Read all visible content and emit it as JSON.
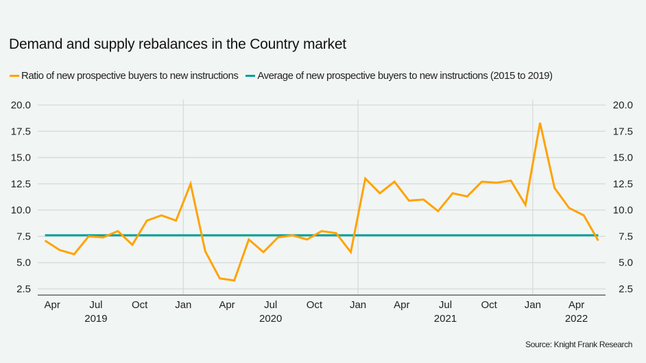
{
  "colors": {
    "background": "#f1f5f4",
    "ratio_series": "#ffa300",
    "average_series": "#00a096",
    "grid": "#d6d9d8",
    "axis": "#888888"
  },
  "chart_data": {
    "type": "line",
    "title": "Demand and supply rebalances in the Country market",
    "source": "Source: Knight Frank Research",
    "xlabel": "",
    "ylabel": "",
    "ylim": [
      2.5,
      20.0
    ],
    "y_ticks": [
      "20.0",
      "17.5",
      "15.0",
      "12.5",
      "10.0",
      "7.5",
      "5.0",
      "2.5"
    ],
    "y_tick_values": [
      20.0,
      17.5,
      15.0,
      12.5,
      10.0,
      7.5,
      5.0,
      2.5
    ],
    "y_axis_both_sides": true,
    "grid": true,
    "legend_position": "top-left",
    "x_start": "2019-03",
    "x_end": "2022-05",
    "x_tick_labels": [
      {
        "month": "Apr",
        "index": 1
      },
      {
        "month": "Jul",
        "index": 4
      },
      {
        "month": "Oct",
        "index": 7
      },
      {
        "month": "Jan",
        "index": 10
      },
      {
        "month": "Apr",
        "index": 13
      },
      {
        "month": "Jul",
        "index": 16
      },
      {
        "month": "Oct",
        "index": 19
      },
      {
        "month": "Jan",
        "index": 22
      },
      {
        "month": "Apr",
        "index": 25
      },
      {
        "month": "Jul",
        "index": 28
      },
      {
        "month": "Oct",
        "index": 31
      },
      {
        "month": "Jan",
        "index": 34
      },
      {
        "month": "Apr",
        "index": 37
      }
    ],
    "year_labels": [
      {
        "year": "2019",
        "index": 4
      },
      {
        "year": "2020",
        "index": 16
      },
      {
        "year": "2021",
        "index": 28
      },
      {
        "year": "2022",
        "index": 37
      }
    ],
    "year_boundaries": [
      10,
      22,
      34
    ],
    "x": [
      "Mar 2019",
      "Apr 2019",
      "May 2019",
      "Jun 2019",
      "Jul 2019",
      "Aug 2019",
      "Sep 2019",
      "Oct 2019",
      "Nov 2019",
      "Dec 2019",
      "Jan 2020",
      "Feb 2020",
      "Mar 2020",
      "Apr 2020",
      "May 2020",
      "Jun 2020",
      "Jul 2020",
      "Aug 2020",
      "Sep 2020",
      "Oct 2020",
      "Nov 2020",
      "Dec 2020",
      "Jan 2021",
      "Feb 2021",
      "Mar 2021",
      "Apr 2021",
      "May 2021",
      "Jun 2021",
      "Jul 2021",
      "Aug 2021",
      "Sep 2021",
      "Oct 2021",
      "Nov 2021",
      "Dec 2021",
      "Jan 2022",
      "Feb 2022",
      "Mar 2022",
      "Apr 2022",
      "May 2022"
    ],
    "series": [
      {
        "name": "Ratio of new prospective buyers to new instructions",
        "color": "#ffa300",
        "values": [
          7.1,
          6.2,
          5.8,
          7.5,
          7.4,
          8.0,
          6.7,
          9.0,
          9.5,
          9.0,
          12.5,
          6.1,
          3.5,
          3.3,
          7.2,
          6.0,
          7.4,
          7.6,
          7.2,
          8.0,
          7.8,
          6.0,
          13.0,
          11.6,
          12.7,
          10.9,
          11.0,
          9.9,
          11.6,
          11.3,
          12.7,
          12.6,
          12.8,
          10.5,
          18.3,
          12.1,
          10.2,
          9.5,
          7.1
        ]
      },
      {
        "name": "Average of new prospective buyers to new instructions (2015 to 2019)",
        "color": "#00a096",
        "values": [
          7.6,
          7.6,
          7.6,
          7.6,
          7.6,
          7.6,
          7.6,
          7.6,
          7.6,
          7.6,
          7.6,
          7.6,
          7.6,
          7.6,
          7.6,
          7.6,
          7.6,
          7.6,
          7.6,
          7.6,
          7.6,
          7.6,
          7.6,
          7.6,
          7.6,
          7.6,
          7.6,
          7.6,
          7.6,
          7.6,
          7.6,
          7.6,
          7.6,
          7.6,
          7.6,
          7.6,
          7.6,
          7.6,
          7.6
        ]
      }
    ]
  }
}
